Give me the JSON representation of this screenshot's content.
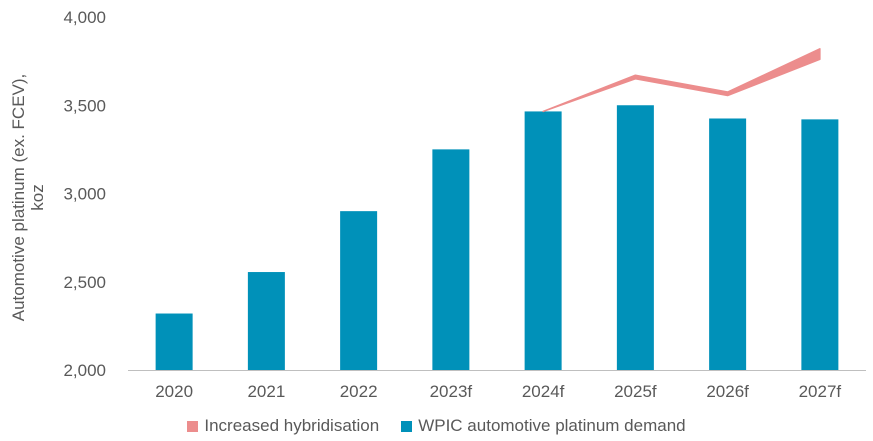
{
  "chart_data": {
    "type": "bar",
    "categories": [
      "2020",
      "2021",
      "2022",
      "2023f",
      "2024f",
      "2025f",
      "2026f",
      "2027f"
    ],
    "series": [
      {
        "name": "WPIC automotive platinum demand",
        "type": "bar",
        "color": "#0091B9",
        "values": [
          2320,
          2555,
          2900,
          3250,
          3465,
          3500,
          3425,
          3420
        ]
      },
      {
        "name": "Increased hybridisation",
        "type": "area-band",
        "color": "#EC8D8D",
        "x": [
          "2024f",
          "2025f",
          "2026f",
          "2027f"
        ],
        "lower": [
          3465,
          3650,
          3555,
          3760
        ],
        "upper": [
          3465,
          3670,
          3575,
          3820
        ]
      }
    ],
    "ylabel": "Automotive platinum (ex. FCEV), koz",
    "ylabel_lines": [
      "Automotive platinum (ex. FCEV),",
      "koz"
    ],
    "y_ticks": [
      "2,000",
      "2,500",
      "3,000",
      "3,500",
      "4,000"
    ],
    "ylim": [
      2000,
      4000
    ],
    "grid": false,
    "legend_position": "bottom"
  },
  "legend": {
    "hybrid_label": "Increased hybridisation",
    "demand_label": "WPIC automotive platinum demand"
  }
}
